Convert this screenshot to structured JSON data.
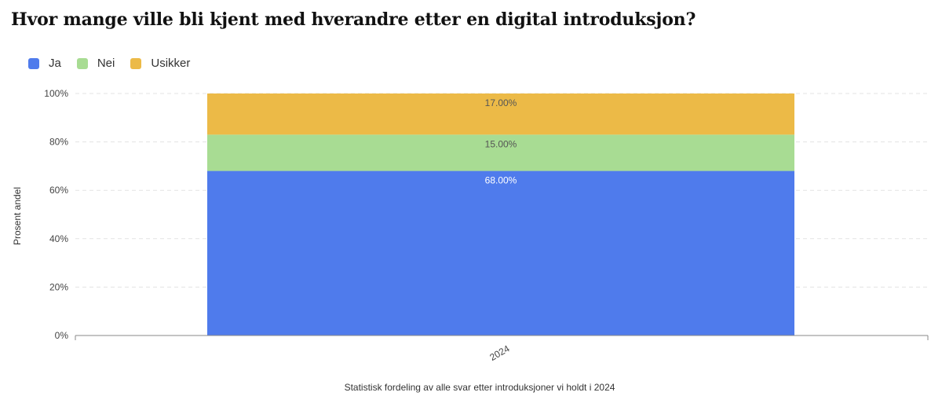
{
  "title": "Hvor mange ville bli kjent med hverandre etter en digital introduksjon?",
  "legend": [
    {
      "label": "Ja",
      "color": "#4f7bec"
    },
    {
      "label": "Nei",
      "color": "#a8dc93"
    },
    {
      "label": "Usikker",
      "color": "#ecba47"
    }
  ],
  "chart_data": {
    "type": "bar",
    "stacked": true,
    "categories": [
      "2024"
    ],
    "series": [
      {
        "name": "Ja",
        "values": [
          68.0
        ],
        "labels": [
          "68.00%"
        ],
        "color": "#4f7bec"
      },
      {
        "name": "Nei",
        "values": [
          15.0
        ],
        "labels": [
          "15.00%"
        ],
        "color": "#a8dc93"
      },
      {
        "name": "Usikker",
        "values": [
          17.0
        ],
        "labels": [
          "17.00%"
        ],
        "color": "#ecba47"
      }
    ],
    "ylabel": "Prosent andel",
    "xlabel": "Statistisk fordeling av alle svar etter introduksjoner vi holdt i 2024",
    "ylim": [
      0,
      100
    ],
    "yticks": [
      "0%",
      "20%",
      "40%",
      "60%",
      "80%",
      "100%"
    ],
    "grid": true,
    "legend_position": "top-left"
  }
}
